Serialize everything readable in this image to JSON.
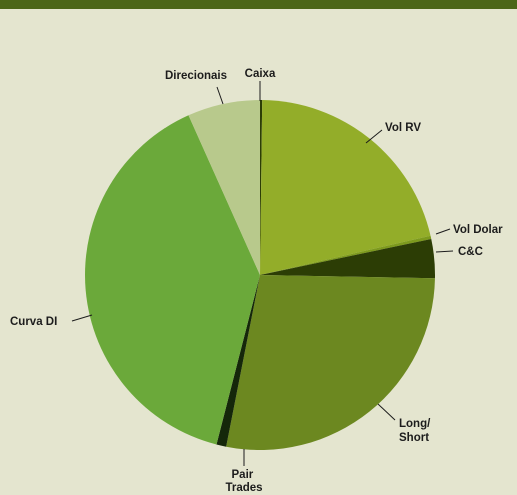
{
  "chart_data": {
    "type": "pie",
    "title": "",
    "slices": [
      {
        "label": "Caixa",
        "value": 0.2,
        "color": "#2c3d05"
      },
      {
        "label": "Vol RV",
        "value": 21.2,
        "color": "#93ad29"
      },
      {
        "label": "Vol Dolar",
        "value": 0.3,
        "color": "#7d9a1d"
      },
      {
        "label": "C&C",
        "value": 3.6,
        "color": "#2c3d05"
      },
      {
        "label": "Long/ Short",
        "value": 27.8,
        "color": "#6c8820"
      },
      {
        "label": "Pair Trades",
        "value": 0.9,
        "color": "#15270a"
      },
      {
        "label": "Curva DI",
        "value": 39.3,
        "color": "#6ba93a"
      },
      {
        "label": "Direcionais",
        "value": 6.7,
        "color": "#b8c98c"
      }
    ]
  }
}
